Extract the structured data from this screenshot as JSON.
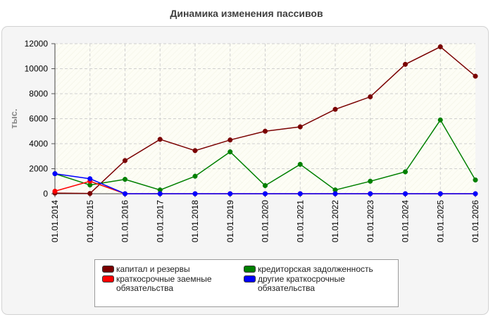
{
  "chart_data": {
    "type": "line",
    "title": "Динамика изменения пассивов",
    "ylabel": "тыс.",
    "xlabel": "",
    "ylim": [
      0,
      12000
    ],
    "yticks": [
      0,
      2000,
      4000,
      6000,
      8000,
      10000,
      12000
    ],
    "grid": true,
    "legend_position": "bottom",
    "categories": [
      "01.01.2014",
      "01.01.2015",
      "01.01.2016",
      "01.01.2017",
      "01.01.2018",
      "01.01.2019",
      "01.01.2020",
      "01.01.2021",
      "01.01.2022",
      "01.01.2023",
      "01.01.2024",
      "01.01.2025",
      "01.01.2026"
    ],
    "series": [
      {
        "name": "капитал и резервы",
        "color": "#7a0000",
        "values": [
          50,
          20,
          2650,
          4350,
          3450,
          4300,
          5000,
          5350,
          6750,
          7750,
          10350,
          11750,
          9400
        ]
      },
      {
        "name": "кредиторская задолженность",
        "color": "#008000",
        "values": [
          1600,
          700,
          1150,
          300,
          1400,
          3350,
          650,
          2350,
          300,
          1000,
          1750,
          5900,
          1100
        ]
      },
      {
        "name": "краткосрочные заемные обязательства",
        "color": "#ff0000",
        "values": [
          200,
          1000,
          0,
          0,
          0,
          0,
          0,
          0,
          0,
          0,
          0,
          0,
          0
        ]
      },
      {
        "name": "другие краткосрочные обязательства",
        "color": "#0000ff",
        "values": [
          1600,
          1200,
          0,
          0,
          0,
          0,
          0,
          0,
          0,
          0,
          0,
          0,
          0
        ]
      }
    ]
  }
}
